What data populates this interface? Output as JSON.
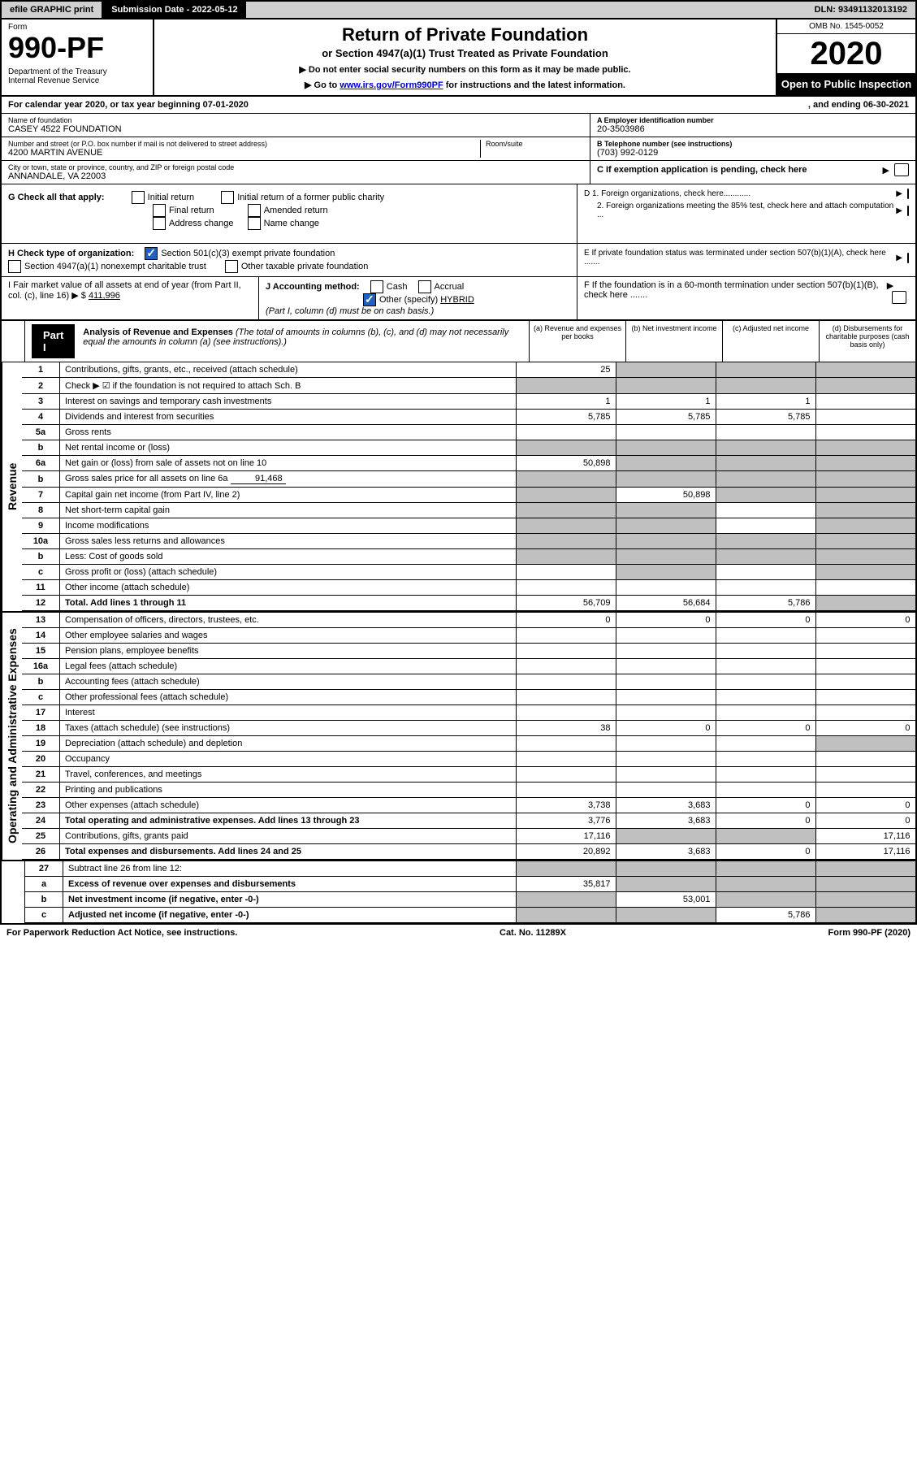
{
  "topbar": {
    "efile": "efile GRAPHIC print",
    "sub_label": "Submission Date - 2022-05-12",
    "dln": "DLN: 93491132013192"
  },
  "header": {
    "form_label": "Form",
    "form_num": "990-PF",
    "dept": "Department of the Treasury\nInternal Revenue Service",
    "title": "Return of Private Foundation",
    "subtitle": "or Section 4947(a)(1) Trust Treated as Private Foundation",
    "instr1": "▶ Do not enter social security numbers on this form as it may be made public.",
    "instr2_prefix": "▶ Go to ",
    "instr2_link": "www.irs.gov/Form990PF",
    "instr2_suffix": " for instructions and the latest information.",
    "omb": "OMB No. 1545-0052",
    "year": "2020",
    "open": "Open to Public Inspection"
  },
  "cal": {
    "text_l": "For calendar year 2020, or tax year beginning 07-01-2020",
    "text_r": ", and ending 06-30-2021"
  },
  "id": {
    "name_label": "Name of foundation",
    "name": "CASEY 4522 FOUNDATION",
    "addr_label": "Number and street (or P.O. box number if mail is not delivered to street address)",
    "addr": "4200 MARTIN AVENUE",
    "room_label": "Room/suite",
    "city_label": "City or town, state or province, country, and ZIP or foreign postal code",
    "city": "ANNANDALE, VA  22003",
    "A_label": "A Employer identification number",
    "A_val": "20-3503986",
    "B_label": "B Telephone number (see instructions)",
    "B_val": "(703) 992-0129",
    "C_label": "C If exemption application is pending, check here"
  },
  "G": {
    "label": "G Check all that apply:",
    "opts": [
      "Initial return",
      "Final return",
      "Address change",
      "Initial return of a former public charity",
      "Amended return",
      "Name change"
    ]
  },
  "D": {
    "d1": "D 1. Foreign organizations, check here............",
    "d2": "2. Foreign organizations meeting the 85% test, check here and attach computation ..."
  },
  "E": "E  If private foundation status was terminated under section 507(b)(1)(A), check here .......",
  "H": {
    "label": "H Check type of organization:",
    "o1": "Section 501(c)(3) exempt private foundation",
    "o2": "Section 4947(a)(1) nonexempt charitable trust",
    "o3": "Other taxable private foundation"
  },
  "I": {
    "label": "I Fair market value of all assets at end of year (from Part II, col. (c), line 16) ▶ $",
    "val": "411,996"
  },
  "J": {
    "label": "J Accounting method:",
    "cash": "Cash",
    "accrual": "Accrual",
    "other_label": "Other (specify)",
    "other_val": "HYBRID",
    "note": "(Part I, column (d) must be on cash basis.)"
  },
  "F": "F  If the foundation is in a 60-month termination under section 507(b)(1)(B), check here .......",
  "part1": {
    "label": "Part I",
    "title": "Analysis of Revenue and Expenses",
    "desc": " (The total of amounts in columns (b), (c), and (d) may not necessarily equal the amounts in column (a) (see instructions).)",
    "ca": "(a)   Revenue and expenses per books",
    "cb": "(b)   Net investment income",
    "cc": "(c)   Adjusted net income",
    "cd": "(d)   Disbursements for charitable purposes (cash basis only)"
  },
  "rows": {
    "r1": {
      "n": "1",
      "l": "Contributions, gifts, grants, etc., received (attach schedule)",
      "a": "25"
    },
    "r2": {
      "n": "2",
      "l": "Check ▶ ☑ if the foundation is not required to attach Sch. B"
    },
    "r3": {
      "n": "3",
      "l": "Interest on savings and temporary cash investments",
      "a": "1",
      "b": "1",
      "c": "1"
    },
    "r4": {
      "n": "4",
      "l": "Dividends and interest from securities",
      "a": "5,785",
      "b": "5,785",
      "c": "5,785"
    },
    "r5a": {
      "n": "5a",
      "l": "Gross rents"
    },
    "r5b": {
      "n": "b",
      "l": "Net rental income or (loss)"
    },
    "r6a": {
      "n": "6a",
      "l": "Net gain or (loss) from sale of assets not on line 10",
      "a": "50,898"
    },
    "r6b": {
      "n": "b",
      "l": "Gross sales price for all assets on line 6a",
      "inline": "91,468"
    },
    "r7": {
      "n": "7",
      "l": "Capital gain net income (from Part IV, line 2)",
      "b": "50,898"
    },
    "r8": {
      "n": "8",
      "l": "Net short-term capital gain"
    },
    "r9": {
      "n": "9",
      "l": "Income modifications"
    },
    "r10a": {
      "n": "10a",
      "l": "Gross sales less returns and allowances"
    },
    "r10b": {
      "n": "b",
      "l": "Less: Cost of goods sold"
    },
    "r10c": {
      "n": "c",
      "l": "Gross profit or (loss) (attach schedule)"
    },
    "r11": {
      "n": "11",
      "l": "Other income (attach schedule)"
    },
    "r12": {
      "n": "12",
      "l": "Total. Add lines 1 through 11",
      "a": "56,709",
      "b": "56,684",
      "c": "5,786"
    },
    "r13": {
      "n": "13",
      "l": "Compensation of officers, directors, trustees, etc.",
      "a": "0",
      "b": "0",
      "c": "0",
      "d": "0"
    },
    "r14": {
      "n": "14",
      "l": "Other employee salaries and wages"
    },
    "r15": {
      "n": "15",
      "l": "Pension plans, employee benefits"
    },
    "r16a": {
      "n": "16a",
      "l": "Legal fees (attach schedule)"
    },
    "r16b": {
      "n": "b",
      "l": "Accounting fees (attach schedule)"
    },
    "r16c": {
      "n": "c",
      "l": "Other professional fees (attach schedule)"
    },
    "r17": {
      "n": "17",
      "l": "Interest"
    },
    "r18": {
      "n": "18",
      "l": "Taxes (attach schedule) (see instructions)",
      "a": "38",
      "b": "0",
      "c": "0",
      "d": "0"
    },
    "r19": {
      "n": "19",
      "l": "Depreciation (attach schedule) and depletion"
    },
    "r20": {
      "n": "20",
      "l": "Occupancy"
    },
    "r21": {
      "n": "21",
      "l": "Travel, conferences, and meetings"
    },
    "r22": {
      "n": "22",
      "l": "Printing and publications"
    },
    "r23": {
      "n": "23",
      "l": "Other expenses (attach schedule)",
      "a": "3,738",
      "b": "3,683",
      "c": "0",
      "d": "0"
    },
    "r24": {
      "n": "24",
      "l": "Total operating and administrative expenses. Add lines 13 through 23",
      "a": "3,776",
      "b": "3,683",
      "c": "0",
      "d": "0"
    },
    "r25": {
      "n": "25",
      "l": "Contributions, gifts, grants paid",
      "a": "17,116",
      "d": "17,116"
    },
    "r26": {
      "n": "26",
      "l": "Total expenses and disbursements. Add lines 24 and 25",
      "a": "20,892",
      "b": "3,683",
      "c": "0",
      "d": "17,116"
    },
    "r27": {
      "n": "27",
      "l": "Subtract line 26 from line 12:"
    },
    "r27a": {
      "n": "a",
      "l": "Excess of revenue over expenses and disbursements",
      "a": "35,817"
    },
    "r27b": {
      "n": "b",
      "l": "Net investment income (if negative, enter -0-)",
      "b": "53,001"
    },
    "r27c": {
      "n": "c",
      "l": "Adjusted net income (if negative, enter -0-)",
      "c": "5,786"
    }
  },
  "sides": {
    "rev": "Revenue",
    "exp": "Operating and Administrative Expenses"
  },
  "footer": {
    "l": "For Paperwork Reduction Act Notice, see instructions.",
    "m": "Cat. No. 11289X",
    "r": "Form 990-PF (2020)"
  }
}
